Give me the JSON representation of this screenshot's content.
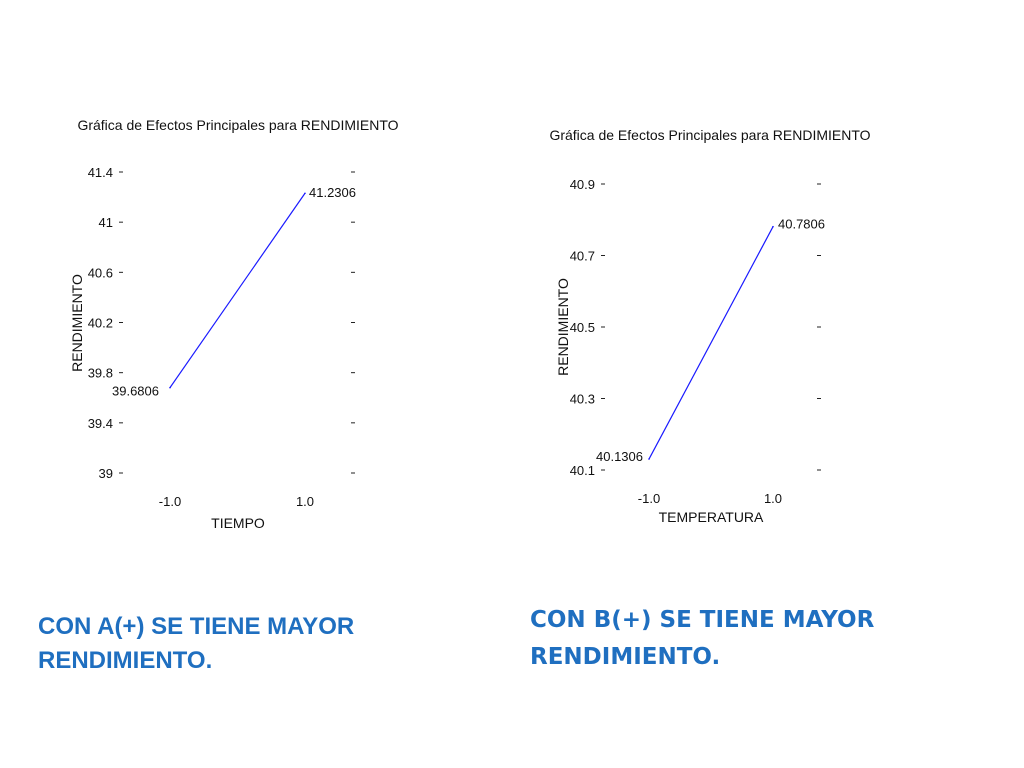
{
  "chart_data": [
    {
      "type": "line",
      "title": "Gráfica de Efectos Principales para RENDIMIENTO",
      "xlabel": "TIEMPO",
      "ylabel": "RENDIMIENTO",
      "categories": [
        "-1.0",
        "1.0"
      ],
      "values": [
        39.6806,
        41.2306
      ],
      "value_labels": [
        "39.6806",
        "41.2306"
      ],
      "y_ticks": [
        "41.4",
        "41",
        "40.6",
        "40.2",
        "39.8",
        "39.4",
        "39"
      ],
      "ylim": [
        39,
        41.4
      ],
      "grid": false,
      "line_color": "#1a1aff"
    },
    {
      "type": "line",
      "title": "Gráfica de Efectos Principales para RENDIMIENTO",
      "xlabel": "TEMPERATURA",
      "ylabel": "RENDIMIENTO",
      "categories": [
        "-1.0",
        "1.0"
      ],
      "values": [
        40.1306,
        40.7806
      ],
      "value_labels": [
        "40.1306",
        "40.7806"
      ],
      "y_ticks": [
        "40.9",
        "40.7",
        "40.5",
        "40.3",
        "40.1"
      ],
      "ylim": [
        40.1,
        40.9
      ],
      "grid": false,
      "line_color": "#1a1aff"
    }
  ],
  "captions": {
    "a": {
      "line1": "CON A(+) SE TIENE MAYOR",
      "line2": "RENDIMIENTO."
    },
    "b": {
      "line1": "CON B(+) SE TIENE MAYOR",
      "line2": "RENDIMIENTO."
    }
  },
  "colors": {
    "caption": "#1f6fc0"
  }
}
